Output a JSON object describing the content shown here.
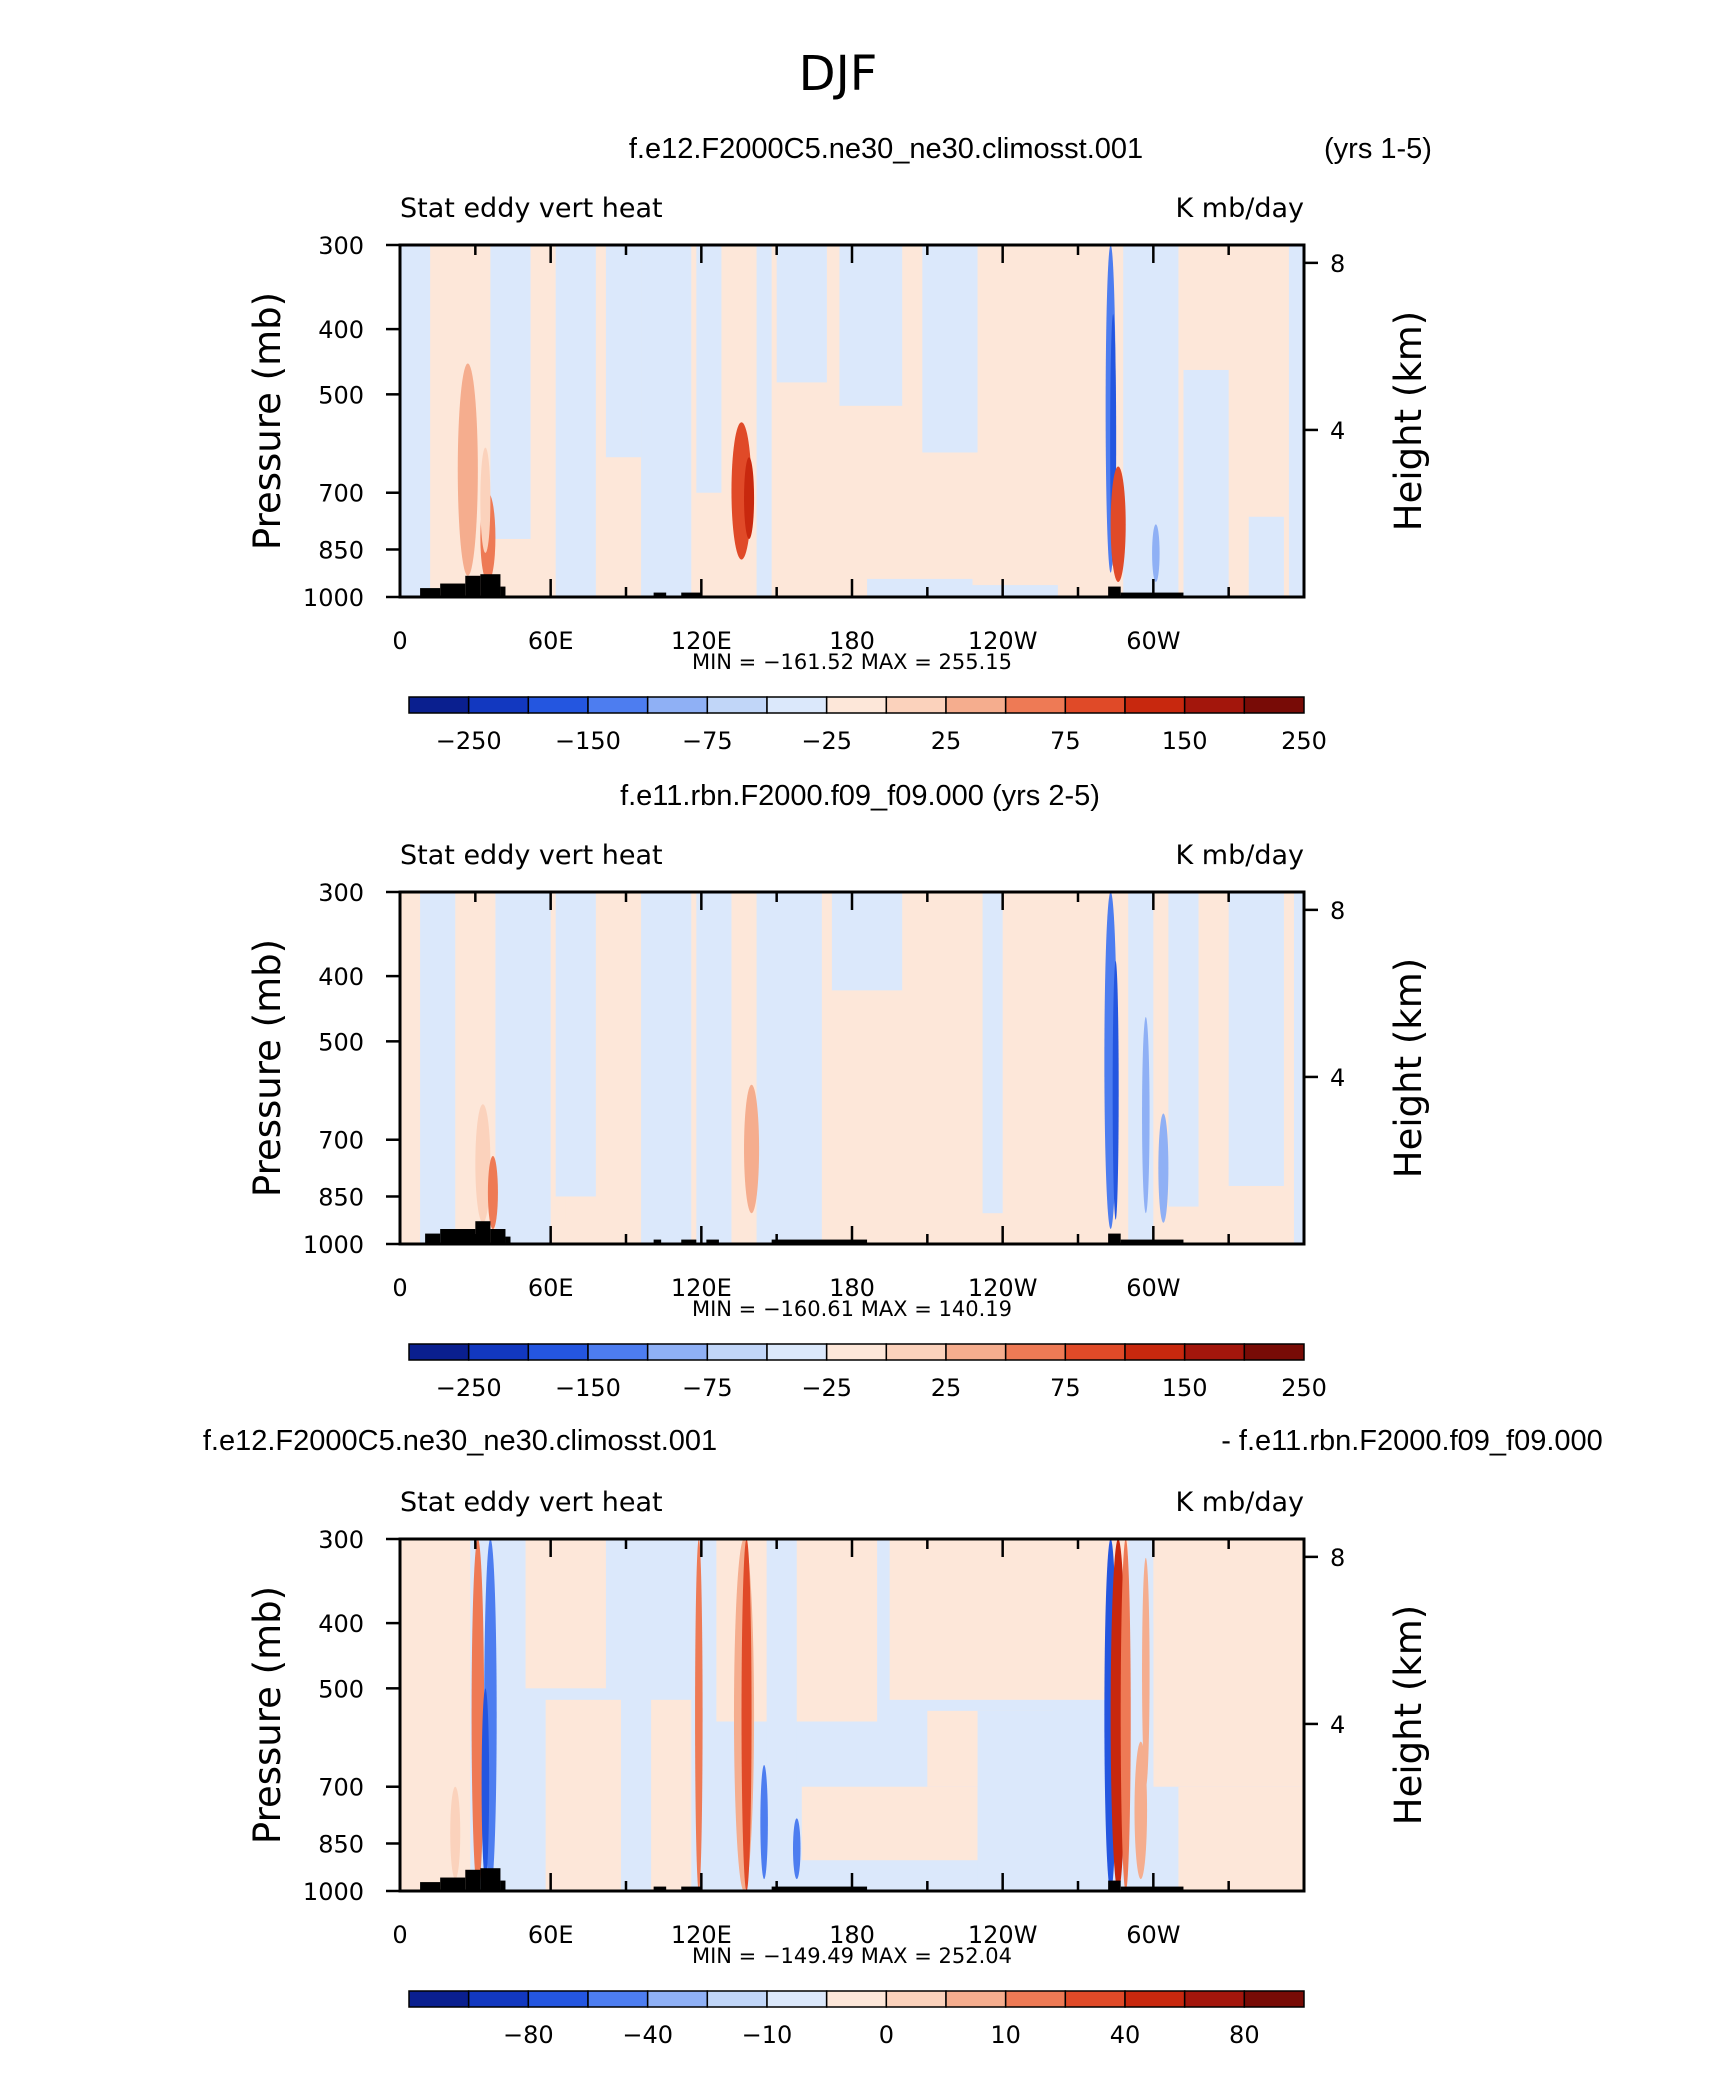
{
  "figure_title": "DJF",
  "chart_data": [
    {
      "type": "heatmap",
      "case_title": "f.e12.F2000C5.ne30_ne30.climosst.001",
      "case_title_right": "(yrs 1-5)",
      "left_string": "Stat eddy vert heat",
      "right_string": "K mb/day",
      "ylabel": "Pressure (mb)",
      "ylabel_right": "Height (km)",
      "y_ticks": [
        "300",
        "400",
        "500",
        "700",
        "850",
        "1000"
      ],
      "y_right_ticks": [
        "8",
        "4"
      ],
      "x_ticks": [
        "0",
        "60E",
        "120E",
        "180",
        "120W",
        "60W"
      ],
      "x_range": [
        0,
        360
      ],
      "y_range": [
        1000,
        300
      ],
      "min_max_label": "MIN = −161.52   MAX = 255.15",
      "min": -161.52,
      "max": 255.15,
      "colorbar_labels": [
        "−250",
        "−150",
        "−75",
        "−25",
        "25",
        "75",
        "150",
        "250"
      ],
      "colorbar_colors": [
        "#0a1f8f",
        "#1238c0",
        "#2456e0",
        "#4d7df0",
        "#8fb0f5",
        "#c1d6f8",
        "#dbe8fb",
        "#fde7d9",
        "#fbd2bc",
        "#f5ad8e",
        "#ee7a55",
        "#e04a28",
        "#c8280e",
        "#a3160c",
        "#780b06"
      ]
    },
    {
      "type": "heatmap",
      "case_title": "f.e11.rbn.F2000.f09_f09.000 (yrs 2-5)",
      "left_string": "Stat eddy vert heat",
      "right_string": "K mb/day",
      "ylabel": "Pressure (mb)",
      "ylabel_right": "Height (km)",
      "y_ticks": [
        "300",
        "400",
        "500",
        "700",
        "850",
        "1000"
      ],
      "y_right_ticks": [
        "8",
        "4"
      ],
      "x_ticks": [
        "0",
        "60E",
        "120E",
        "180",
        "120W",
        "60W"
      ],
      "x_range": [
        0,
        360
      ],
      "y_range": [
        1000,
        300
      ],
      "min_max_label": "MIN = −160.61   MAX = 140.19",
      "min": -160.61,
      "max": 140.19,
      "colorbar_labels": [
        "−250",
        "−150",
        "−75",
        "−25",
        "25",
        "75",
        "150",
        "250"
      ],
      "colorbar_colors": [
        "#0a1f8f",
        "#1238c0",
        "#2456e0",
        "#4d7df0",
        "#8fb0f5",
        "#c1d6f8",
        "#dbe8fb",
        "#fde7d9",
        "#fbd2bc",
        "#f5ad8e",
        "#ee7a55",
        "#e04a28",
        "#c8280e",
        "#a3160c",
        "#780b06"
      ]
    },
    {
      "type": "heatmap",
      "case_title": "f.e12.F2000C5.ne30_ne30.climosst.001",
      "case_title_right": "- f.e11.rbn.F2000.f09_f09.000",
      "left_string": "Stat eddy vert heat",
      "right_string": "K mb/day",
      "ylabel": "Pressure (mb)",
      "ylabel_right": "Height (km)",
      "y_ticks": [
        "300",
        "400",
        "500",
        "700",
        "850",
        "1000"
      ],
      "y_right_ticks": [
        "8",
        "4"
      ],
      "x_ticks": [
        "0",
        "60E",
        "120E",
        "180",
        "120W",
        "60W"
      ],
      "x_range": [
        0,
        360
      ],
      "y_range": [
        1000,
        300
      ],
      "min_max_label": "MIN = −149.49   MAX = 252.04",
      "min": -149.49,
      "max": 252.04,
      "colorbar_labels": [
        "−80",
        "−40",
        "−10",
        "0",
        "10",
        "40",
        "80"
      ],
      "colorbar_colors": [
        "#0a1f8f",
        "#1238c0",
        "#2456e0",
        "#4d7df0",
        "#8fb0f5",
        "#c1d6f8",
        "#dbe8fb",
        "#fde7d9",
        "#fbd2bc",
        "#f5ad8e",
        "#ee7a55",
        "#e04a28",
        "#c8280e",
        "#a3160c",
        "#780b06"
      ]
    }
  ]
}
